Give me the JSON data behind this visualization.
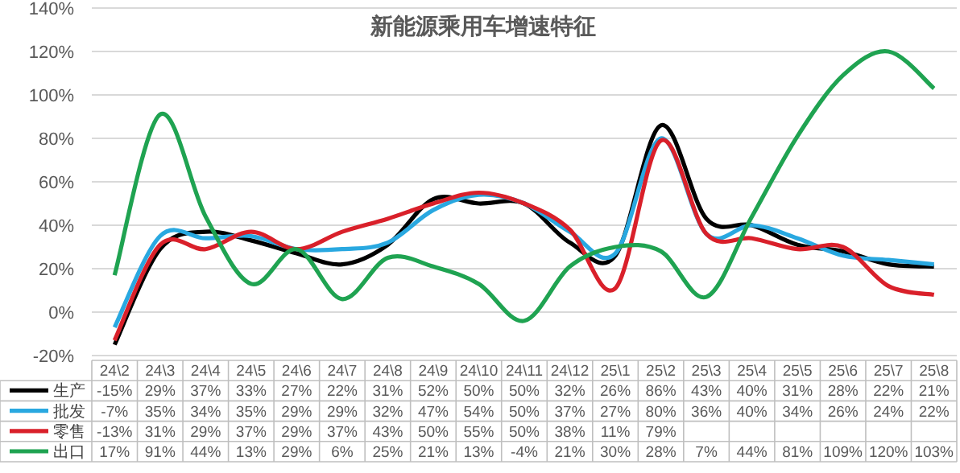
{
  "chart_data": {
    "type": "line",
    "title": "新能源乘用车增速特征",
    "categories": [
      "24\\2",
      "24\\3",
      "24\\4",
      "24\\5",
      "24\\6",
      "24\\7",
      "24\\8",
      "24\\9",
      "24\\10",
      "24\\11",
      "24\\12",
      "25\\1",
      "25\\2",
      "25\\3",
      "25\\4",
      "25\\5",
      "25\\6",
      "25\\7",
      "25\\8"
    ],
    "series": [
      {
        "name": "生产",
        "color": "#000000",
        "values": [
          -15,
          29,
          37,
          33,
          27,
          22,
          31,
          52,
          50,
          50,
          32,
          26,
          86,
          43,
          40,
          31,
          28,
          22,
          21
        ],
        "value_labels": [
          "-15%",
          "29%",
          "37%",
          "33%",
          "27%",
          "22%",
          "31%",
          "52%",
          "50%",
          "50%",
          "32%",
          "26%",
          "86%",
          "43%",
          "40%",
          "31%",
          "28%",
          "22%",
          "21%"
        ]
      },
      {
        "name": "批发",
        "color": "#29a8e0",
        "values": [
          -7,
          35,
          34,
          35,
          29,
          29,
          32,
          47,
          54,
          50,
          37,
          27,
          80,
          36,
          40,
          34,
          26,
          24,
          22
        ],
        "value_labels": [
          "-7%",
          "35%",
          "34%",
          "35%",
          "29%",
          "29%",
          "32%",
          "47%",
          "54%",
          "50%",
          "37%",
          "27%",
          "80%",
          "36%",
          "40%",
          "34%",
          "26%",
          "24%",
          "22%"
        ]
      },
      {
        "name": "零售",
        "color": "#d9202a",
        "values": [
          -13,
          31,
          29,
          37,
          29,
          37,
          43,
          50,
          55,
          50,
          38,
          11,
          79,
          36,
          34,
          29,
          30,
          12,
          8
        ],
        "value_labels": [
          "-13%",
          "31%",
          "29%",
          "37%",
          "29%",
          "37%",
          "43%",
          "50%",
          "55%",
          "50%",
          "38%",
          "11%",
          "79%",
          null,
          null,
          null,
          null,
          null,
          null
        ]
      },
      {
        "name": "出口",
        "color": "#1fa351",
        "values": [
          17,
          91,
          44,
          13,
          29,
          6,
          25,
          21,
          13,
          -4,
          21,
          30,
          28,
          7,
          44,
          81,
          109,
          120,
          103
        ],
        "value_labels": [
          "17%",
          "91%",
          "44%",
          "13%",
          "29%",
          "6%",
          "25%",
          "21%",
          "13%",
          "-4%",
          "21%",
          "30%",
          "28%",
          "7%",
          "44%",
          "81%",
          "109%",
          "120%",
          "103%"
        ]
      }
    ],
    "ylim": [
      -20,
      140
    ],
    "yticks": [
      {
        "value": -20,
        "label": "-20%"
      },
      {
        "value": 0,
        "label": "0%"
      },
      {
        "value": 20,
        "label": "20%"
      },
      {
        "value": 40,
        "label": "40%"
      },
      {
        "value": 60,
        "label": "60%"
      },
      {
        "value": 80,
        "label": "80%"
      },
      {
        "value": 100,
        "label": "100%"
      },
      {
        "value": 120,
        "label": "120%"
      },
      {
        "value": 140,
        "label": "140%"
      }
    ],
    "grid": "y",
    "data_labels": true,
    "legend": "bottom left"
  }
}
